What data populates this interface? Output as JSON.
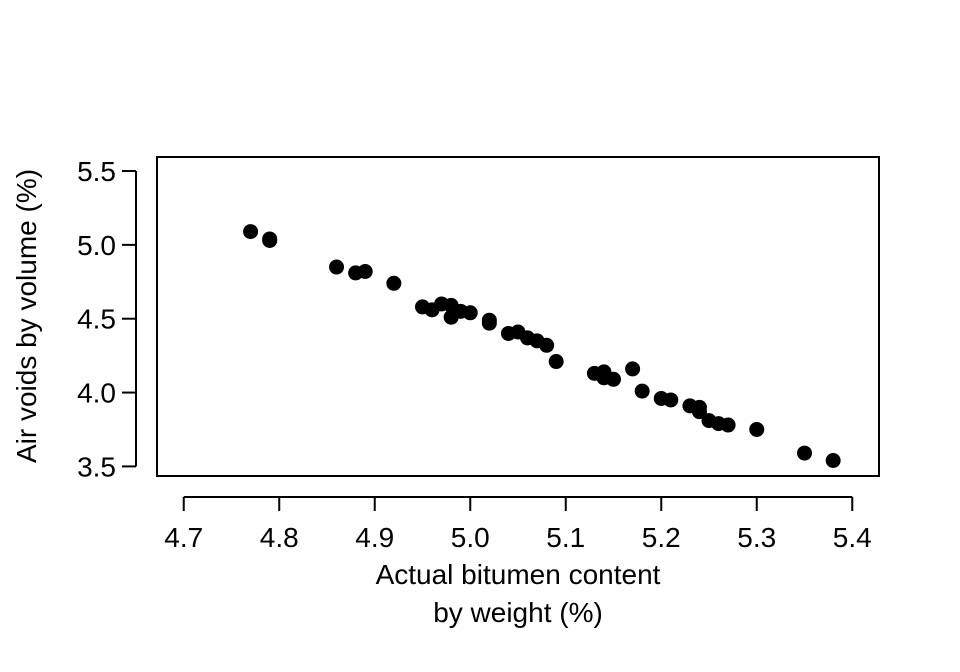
{
  "chart_data": {
    "type": "scatter",
    "xlabel_lines": [
      "Actual bitumen content",
      "by weight (%)"
    ],
    "ylabel": "Air voids by volume (%)",
    "xlim": [
      4.672,
      5.428
    ],
    "ylim": [
      3.435,
      5.595
    ],
    "x_ticks": [
      "4.7",
      "4.8",
      "4.9",
      "5.0",
      "5.1",
      "5.2",
      "5.3",
      "5.4"
    ],
    "y_ticks": [
      "3.5",
      "4.0",
      "4.5",
      "5.0",
      "5.5"
    ],
    "grid": false,
    "point_color": "#000000",
    "points": [
      {
        "x": 4.77,
        "y": 5.09
      },
      {
        "x": 4.79,
        "y": 5.04
      },
      {
        "x": 4.79,
        "y": 5.03
      },
      {
        "x": 4.86,
        "y": 4.85
      },
      {
        "x": 4.88,
        "y": 4.81
      },
      {
        "x": 4.89,
        "y": 4.82
      },
      {
        "x": 4.92,
        "y": 4.74
      },
      {
        "x": 4.95,
        "y": 4.58
      },
      {
        "x": 4.96,
        "y": 4.56
      },
      {
        "x": 4.97,
        "y": 4.6
      },
      {
        "x": 4.98,
        "y": 4.59
      },
      {
        "x": 4.98,
        "y": 4.51
      },
      {
        "x": 4.99,
        "y": 4.55
      },
      {
        "x": 5.0,
        "y": 4.54
      },
      {
        "x": 5.02,
        "y": 4.49
      },
      {
        "x": 5.02,
        "y": 4.47
      },
      {
        "x": 5.04,
        "y": 4.4
      },
      {
        "x": 5.05,
        "y": 4.41
      },
      {
        "x": 5.06,
        "y": 4.37
      },
      {
        "x": 5.07,
        "y": 4.35
      },
      {
        "x": 5.08,
        "y": 4.32
      },
      {
        "x": 5.09,
        "y": 4.21
      },
      {
        "x": 5.13,
        "y": 4.13
      },
      {
        "x": 5.14,
        "y": 4.14
      },
      {
        "x": 5.14,
        "y": 4.1
      },
      {
        "x": 5.15,
        "y": 4.09
      },
      {
        "x": 5.17,
        "y": 4.16
      },
      {
        "x": 5.18,
        "y": 4.01
      },
      {
        "x": 5.2,
        "y": 3.96
      },
      {
        "x": 5.21,
        "y": 3.95
      },
      {
        "x": 5.23,
        "y": 3.91
      },
      {
        "x": 5.24,
        "y": 3.9
      },
      {
        "x": 5.24,
        "y": 3.87
      },
      {
        "x": 5.25,
        "y": 3.81
      },
      {
        "x": 5.26,
        "y": 3.79
      },
      {
        "x": 5.27,
        "y": 3.78
      },
      {
        "x": 5.3,
        "y": 3.75
      },
      {
        "x": 5.35,
        "y": 3.59
      },
      {
        "x": 5.38,
        "y": 3.54
      }
    ]
  }
}
